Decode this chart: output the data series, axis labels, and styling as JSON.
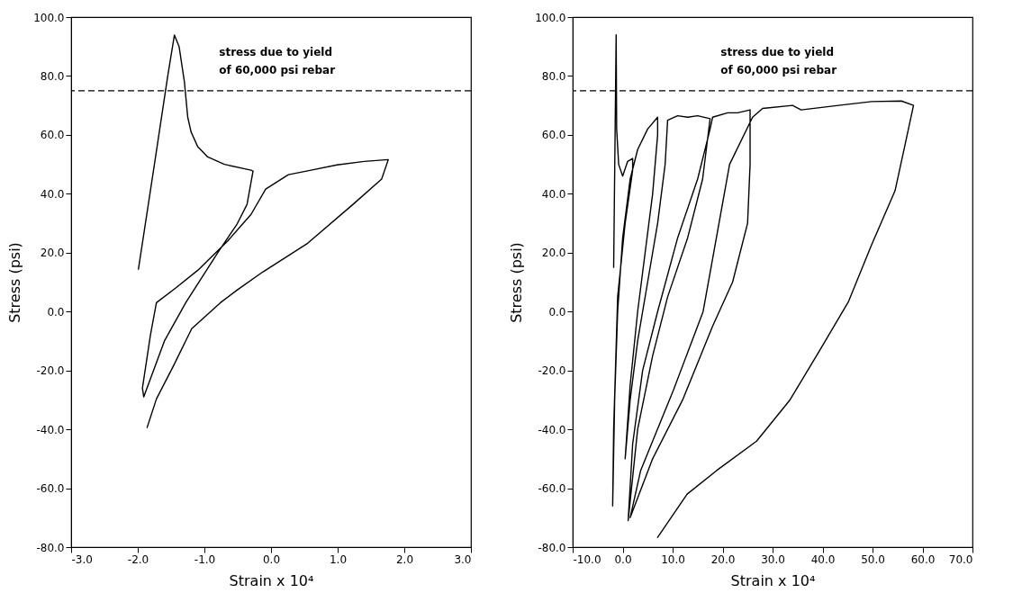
{
  "chart_data": [
    {
      "type": "line",
      "xlabel": "Strain x 10⁴",
      "ylabel": "Stress (psi)",
      "xlim": [
        -3,
        3
      ],
      "ylim": [
        -80,
        100
      ],
      "xticks": [
        {
          "value": -3,
          "label": "-3.0"
        },
        {
          "value": -2,
          "label": "-2.0"
        },
        {
          "value": -1,
          "label": "-1.0"
        },
        {
          "value": 0,
          "label": "0.0"
        },
        {
          "value": 1,
          "label": "1.0"
        },
        {
          "value": 2,
          "label": "2.0"
        },
        {
          "value": 3,
          "label": "3.0"
        }
      ],
      "yticks": [
        {
          "value": -80,
          "label": "-80.0"
        },
        {
          "value": -60,
          "label": "-60.0"
        },
        {
          "value": -40,
          "label": "-40.0"
        },
        {
          "value": -20,
          "label": "-20.0"
        },
        {
          "value": 0,
          "label": "0.0"
        },
        {
          "value": 20,
          "label": "20.0"
        },
        {
          "value": 40,
          "label": "40.0"
        },
        {
          "value": 60,
          "label": "60.0"
        },
        {
          "value": 80,
          "label": "80.0"
        },
        {
          "value": 100,
          "label": "100.0"
        }
      ],
      "series": [
        {
          "color": "#000000",
          "x": [
            -1.99,
            -1.75,
            -1.55,
            -1.45,
            -1.38,
            -1.3,
            -1.25,
            -1.2,
            -1.1,
            -0.95,
            -0.7,
            -0.3,
            -0.27,
            -0.36,
            -0.51,
            -0.8,
            -1.28,
            -1.6,
            -1.91,
            -1.93,
            -1.81,
            -1.72,
            -1.43,
            -1.1,
            -0.65,
            -0.3,
            -0.08,
            0.26,
            0.6,
            0.99,
            1.4,
            1.76,
            1.66,
            1.23,
            0.55,
            -0.12,
            -0.51,
            -0.76,
            -1.19,
            -1.47,
            -1.72,
            -1.86
          ],
          "values": [
            14.4,
            50,
            80,
            93.9,
            90,
            78,
            66,
            61,
            56,
            52.5,
            50,
            48,
            47.7,
            36.4,
            29.7,
            20,
            3,
            -10,
            -29,
            -26,
            -8,
            3,
            8,
            14,
            24,
            33,
            41.6,
            46.5,
            48,
            49.8,
            51,
            51.6,
            45,
            36.4,
            23.2,
            13.5,
            7.3,
            3,
            -5.8,
            -18.7,
            -29.7,
            -39.4
          ]
        }
      ],
      "ref_lines": [
        {
          "axis": "y",
          "value": 75,
          "label": "stress due to yield\nof 60,000 psi rebar",
          "line_style": "dashed"
        }
      ]
    },
    {
      "type": "line",
      "xlabel": "Strain x 10⁴",
      "ylabel": "Stress (psi)",
      "xlim": [
        -10,
        70
      ],
      "ylim": [
        -80,
        100
      ],
      "xticks": [
        {
          "value": -10,
          "label": "-10.0"
        },
        {
          "value": 0,
          "label": "0.0"
        },
        {
          "value": 10,
          "label": "10.0"
        },
        {
          "value": 20,
          "label": "20.0"
        },
        {
          "value": 30,
          "label": "30.0"
        },
        {
          "value": 40,
          "label": "40.0"
        },
        {
          "value": 50,
          "label": "50.0"
        },
        {
          "value": 60,
          "label": "60.0"
        },
        {
          "value": 70,
          "label": "70.0"
        }
      ],
      "yticks": [
        {
          "value": -80,
          "label": "-80.0"
        },
        {
          "value": -60,
          "label": "-60.0"
        },
        {
          "value": -40,
          "label": "-40.0"
        },
        {
          "value": -20,
          "label": "-20.0"
        },
        {
          "value": 0,
          "label": "0.0"
        },
        {
          "value": 20,
          "label": "20.0"
        },
        {
          "value": 40,
          "label": "40.0"
        },
        {
          "value": 60,
          "label": "60.0"
        },
        {
          "value": 80,
          "label": "80.0"
        },
        {
          "value": 100,
          "label": "100.0"
        }
      ],
      "series": [
        {
          "color": "#000000",
          "x": [
            -1.8,
            -1.3,
            -1.2,
            -0.8,
            0,
            1,
            2,
            2,
            0.5,
            -1,
            -1.8,
            -2,
            -1.6,
            -1,
            0,
            1.5,
            3,
            5,
            7,
            7,
            6,
            4.5,
            3,
            1.5,
            0.5,
            1.5,
            3,
            5,
            7,
            8.5,
            9,
            11,
            13,
            15,
            17.5,
            16,
            13,
            9,
            6,
            3,
            1.1,
            2,
            4,
            7,
            11,
            15,
            17.5,
            18,
            21,
            23,
            25.5,
            25.5,
            25,
            22,
            18,
            12,
            6,
            1.5,
            3.6,
            10.2,
            16.1,
            21.4,
            26,
            28,
            34,
            35.7,
            43.2,
            49.8,
            55.8,
            58.2,
            56.4,
            54.5,
            49.8,
            45.2,
            39.3,
            33.4,
            26.8,
            18.8,
            12.9,
            7
          ],
          "values": [
            15,
            94,
            62,
            50,
            46,
            51,
            52,
            48,
            30,
            5,
            -40,
            -66,
            -30,
            0,
            25,
            45,
            55,
            62,
            66,
            60,
            40,
            20,
            0,
            -25,
            -50,
            -30,
            -10,
            10,
            30,
            50,
            65,
            66.5,
            66,
            66.5,
            65.5,
            45,
            25,
            5,
            -15,
            -40,
            -71,
            -45,
            -20,
            0,
            25,
            45,
            62,
            66,
            67.5,
            67.5,
            68.5,
            50,
            30,
            10,
            -5,
            -30,
            -50,
            -70,
            -54,
            -26.5,
            0,
            50,
            66,
            69,
            70,
            68.5,
            70,
            71.3,
            71.5,
            70,
            55.8,
            41,
            22.6,
            3.4,
            -13.6,
            -30.2,
            -44,
            -54,
            -62,
            -76.7
          ]
        }
      ],
      "ref_lines": [
        {
          "axis": "y",
          "value": 75,
          "label": "stress due to yield\nof 60,000 psi rebar",
          "line_style": "dashed"
        }
      ]
    }
  ]
}
